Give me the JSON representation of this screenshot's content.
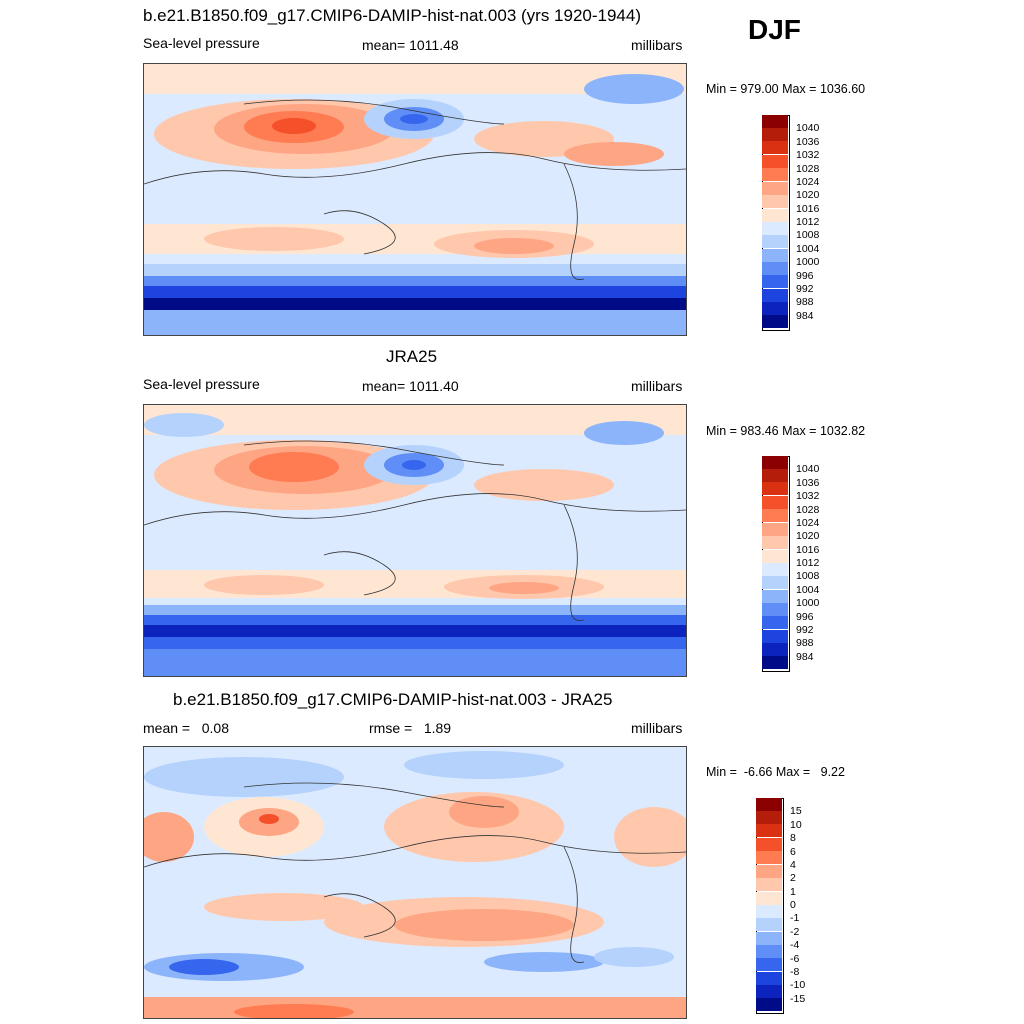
{
  "season": "DJF",
  "panels": [
    {
      "title": "b.e21.B1850.f09_g17.CMIP6-DAMIP-hist-nat.003 (yrs 1920-1944)",
      "left_label": "Sea-level pressure",
      "center_label": "mean= 1011.48",
      "right_label": "millibars",
      "minmax": "Min = 979.00 Max = 1036.60",
      "legend": {
        "labels": [
          "1040",
          "1036",
          "1032",
          "1028",
          "1024",
          "1020",
          "1016",
          "1012",
          "1008",
          "1004",
          "1000",
          "996",
          "992",
          "988",
          "984"
        ],
        "colors": [
          "#8b0000",
          "#b51d0b",
          "#d93112",
          "#f4502a",
          "#ff7c52",
          "#fea584",
          "#ffc8ac",
          "#ffe6d2",
          "#dbeaff",
          "#b4d2fc",
          "#8cb4fa",
          "#5f8ef6",
          "#3766ee",
          "#1d44de",
          "#0c24bd",
          "#000c87"
        ]
      }
    },
    {
      "title": "JRA25",
      "left_label": "Sea-level pressure",
      "center_label": "mean= 1011.40",
      "right_label": "millibars",
      "minmax": "Min = 983.46 Max = 1032.82",
      "legend": {
        "labels": [
          "1040",
          "1036",
          "1032",
          "1028",
          "1024",
          "1020",
          "1016",
          "1012",
          "1008",
          "1004",
          "1000",
          "996",
          "992",
          "988",
          "984"
        ],
        "colors": [
          "#8b0000",
          "#b51d0b",
          "#d93112",
          "#f4502a",
          "#ff7c52",
          "#fea584",
          "#ffc8ac",
          "#ffe6d2",
          "#dbeaff",
          "#b4d2fc",
          "#8cb4fa",
          "#5f8ef6",
          "#3766ee",
          "#1d44de",
          "#0c24bd",
          "#000c87"
        ]
      }
    },
    {
      "title": "b.e21.B1850.f09_g17.CMIP6-DAMIP-hist-nat.003 - JRA25",
      "left_label": "mean =   0.08",
      "center_label": "rmse =   1.89",
      "right_label": "millibars",
      "minmax": "Min =  -6.66 Max =   9.22",
      "legend": {
        "labels": [
          "15",
          "10",
          "8",
          "6",
          "4",
          "2",
          "1",
          "0",
          "-1",
          "-2",
          "-4",
          "-6",
          "-8",
          "-10",
          "-15"
        ],
        "colors": [
          "#8b0000",
          "#b51d0b",
          "#d93112",
          "#f4502a",
          "#ff7c52",
          "#fea584",
          "#ffc8ac",
          "#ffe6d2",
          "#dbeaff",
          "#b4d2fc",
          "#8cb4fa",
          "#5f8ef6",
          "#3766ee",
          "#1d44de",
          "#0c24bd",
          "#000c87"
        ]
      }
    }
  ]
}
